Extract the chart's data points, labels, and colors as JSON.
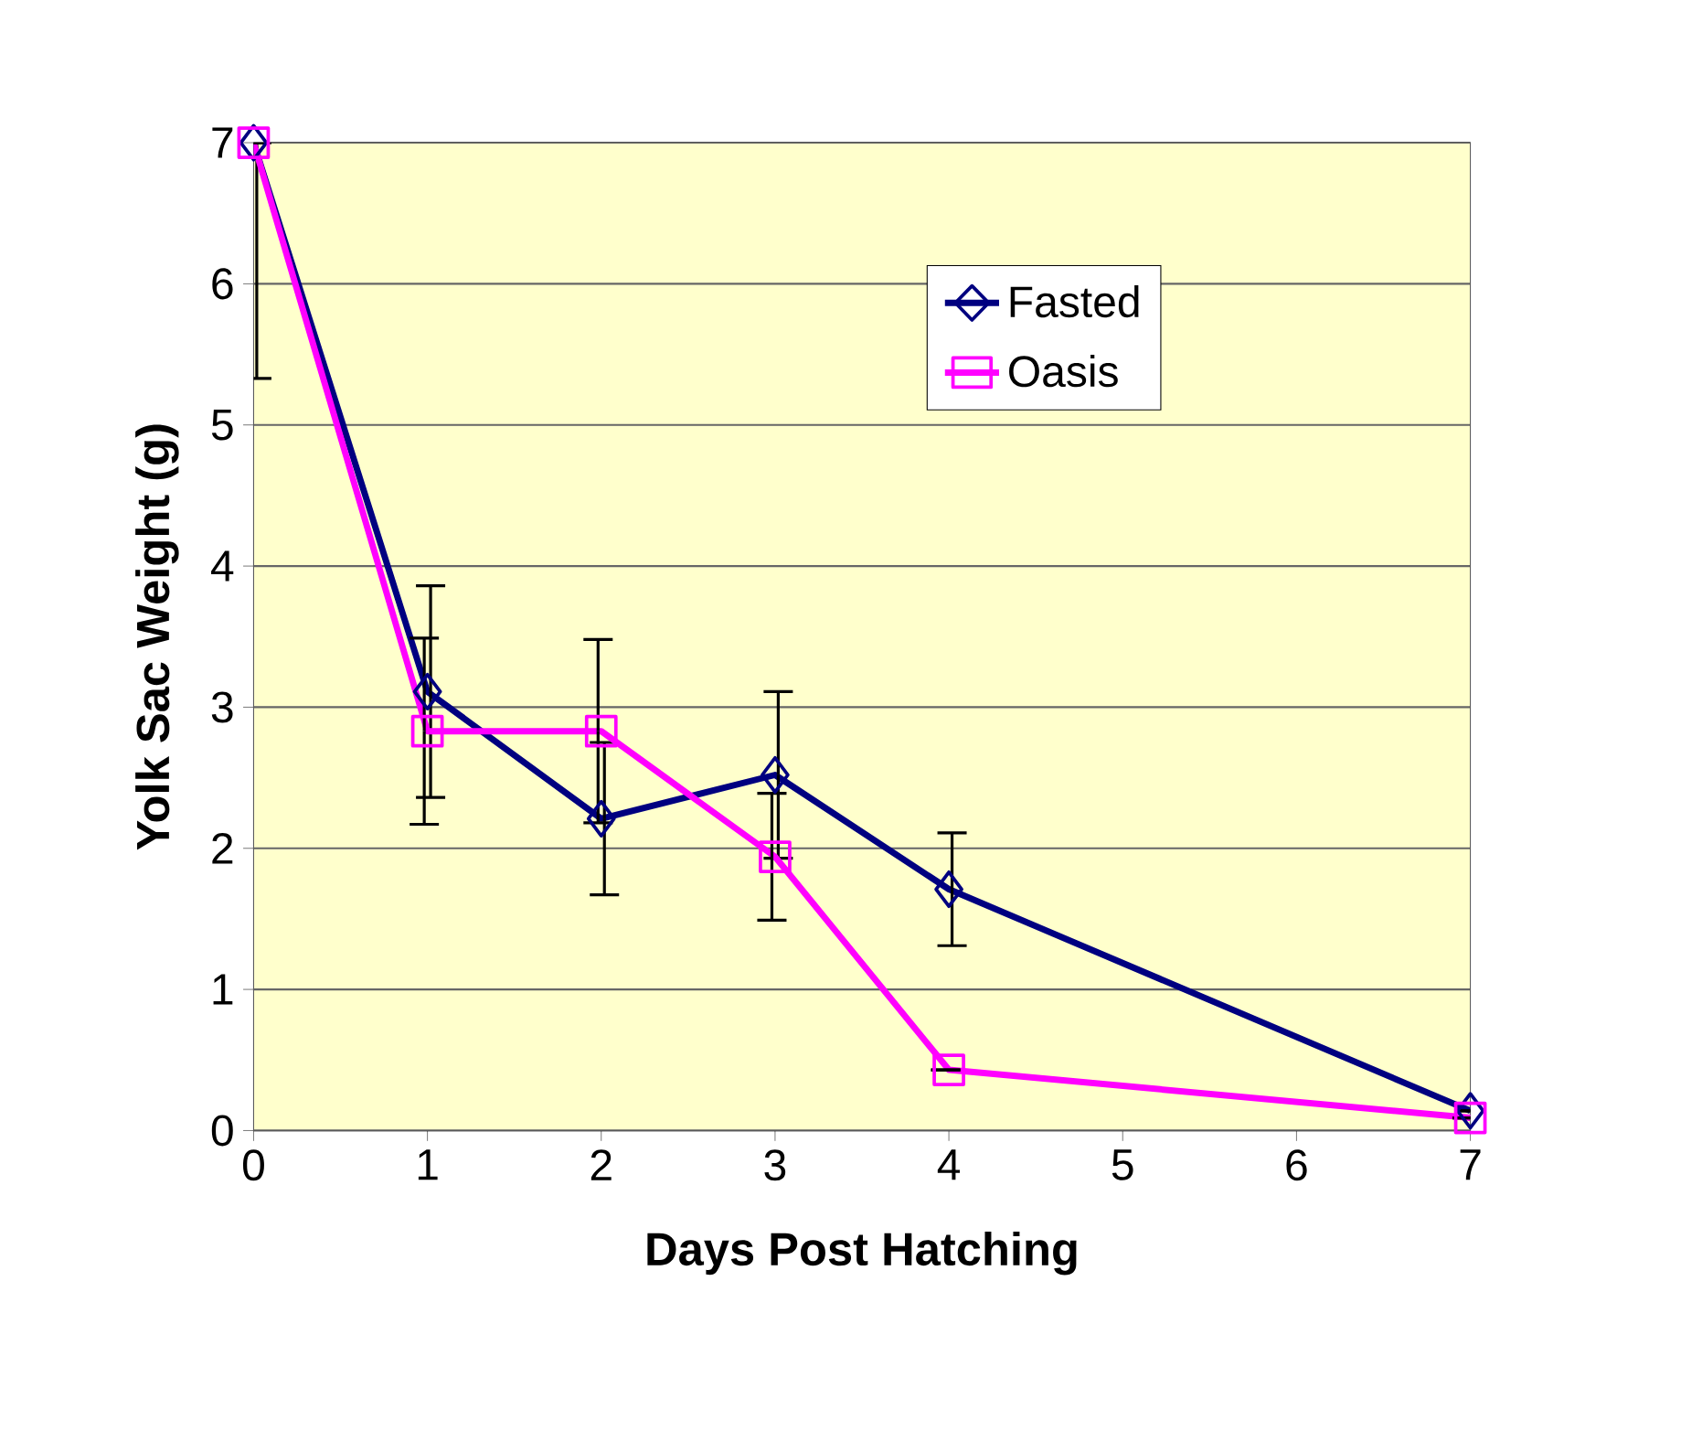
{
  "chart_data": {
    "type": "line",
    "xlabel": "Days Post Hatching",
    "ylabel": "Yolk Sac Weight (g)",
    "x": [
      0,
      1,
      2,
      3,
      4,
      7
    ],
    "series": [
      {
        "name": "Fasted",
        "color": "#000080",
        "marker": "diamond",
        "values": [
          7.0,
          3.11,
          2.21,
          2.52,
          1.71,
          0.14
        ],
        "errors": [
          [
            5.33,
            7.0
          ],
          0.75,
          0.54,
          0.59,
          0.4,
          null
        ]
      },
      {
        "name": "Oasis",
        "color": "#ff00ff",
        "marker": "square",
        "values": [
          7.0,
          2.83,
          2.83,
          1.94,
          0.43,
          0.09
        ],
        "errors": [
          null,
          0.66,
          0.65,
          0.45,
          null,
          null
        ]
      }
    ],
    "xlim": [
      0,
      7
    ],
    "ylim": [
      0,
      7
    ],
    "xticks": [
      0,
      1,
      2,
      3,
      4,
      5,
      6,
      7
    ],
    "yticks": [
      0,
      1,
      2,
      3,
      4,
      5,
      6,
      7
    ],
    "grid": "y",
    "legend": "top right",
    "line_style": "solid"
  }
}
